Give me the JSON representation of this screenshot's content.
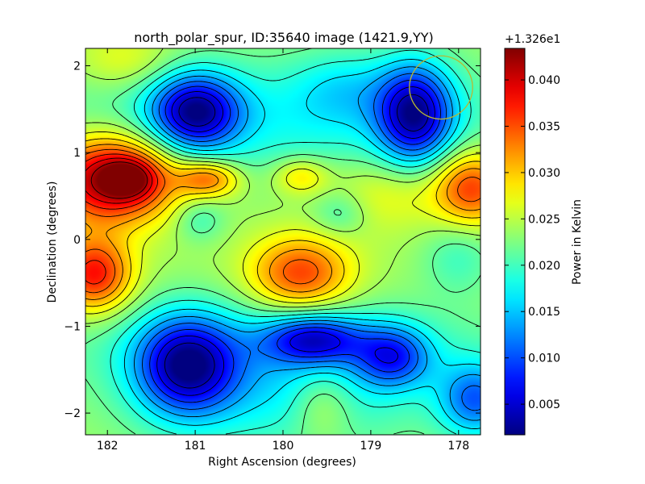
{
  "chart_data": {
    "type": "heatmap",
    "title": "north_polar_spur, ID:35640 image (1421.9,YY)",
    "xlabel": "Right Ascension (degrees)",
    "ylabel": "Declination (degrees)",
    "xlim": [
      182.25,
      177.75
    ],
    "ylim": [
      -2.25,
      2.2
    ],
    "x_ticks": [
      182,
      181,
      180,
      179,
      178
    ],
    "x_tick_labels": [
      "182",
      "181",
      "180",
      "179",
      "178"
    ],
    "y_ticks": [
      2,
      1,
      0,
      -1,
      -2
    ],
    "y_tick_labels": [
      "2",
      "1",
      "0",
      "−1",
      "−2"
    ],
    "grid": false,
    "contours": true,
    "colormap": "jet",
    "beam_circle": {
      "ra": 178.2,
      "dec": 1.75,
      "radius_deg": 0.36,
      "color": "#b8b832"
    },
    "colorbar": {
      "label": "Power in Kelvin",
      "offset_text": "+1.326e1",
      "vmin": 0.0017,
      "vmax": 0.0434,
      "ticks": [
        0.005,
        0.01,
        0.015,
        0.02,
        0.025,
        0.03,
        0.035,
        0.04
      ],
      "tick_labels": [
        "0.005",
        "0.010",
        "0.015",
        "0.020",
        "0.025",
        "0.030",
        "0.035",
        "0.040"
      ]
    },
    "field": {
      "base": 0.024,
      "features": [
        {
          "ra": 181.95,
          "dec": 0.7,
          "amp": 0.02,
          "sra": 0.5,
          "sdec": 0.35
        },
        {
          "ra": 181.75,
          "dec": 0.7,
          "amp": 0.008,
          "sra": 0.2,
          "sdec": 0.15
        },
        {
          "ra": 182.15,
          "dec": -0.4,
          "amp": 0.014,
          "sra": 0.3,
          "sdec": 0.3
        },
        {
          "ra": 180.85,
          "dec": 0.7,
          "amp": 0.01,
          "sra": 0.25,
          "sdec": 0.15
        },
        {
          "ra": 179.8,
          "dec": 0.73,
          "amp": 0.006,
          "sra": 0.22,
          "sdec": 0.15
        },
        {
          "ra": 179.8,
          "dec": -0.4,
          "amp": 0.012,
          "sra": 0.4,
          "sdec": 0.3
        },
        {
          "ra": 177.85,
          "dec": 0.6,
          "amp": 0.012,
          "sra": 0.3,
          "sdec": 0.3
        },
        {
          "ra": 178.8,
          "dec": 0.55,
          "amp": 0.004,
          "sra": 0.5,
          "sdec": 0.3
        },
        {
          "ra": 181.0,
          "dec": 1.47,
          "amp": -0.018,
          "sra": 0.35,
          "sdec": 0.3
        },
        {
          "ra": 178.5,
          "dec": 1.45,
          "amp": -0.018,
          "sra": 0.3,
          "sdec": 0.4
        },
        {
          "ra": 181.8,
          "dec": 2.05,
          "amp": 0.004,
          "sra": 0.4,
          "sdec": 0.25
        },
        {
          "ra": 179.3,
          "dec": 1.75,
          "amp": -0.004,
          "sra": 0.4,
          "sdec": 0.3
        },
        {
          "ra": 181.1,
          "dec": -1.45,
          "amp": -0.018,
          "sra": 0.4,
          "sdec": 0.4
        },
        {
          "ra": 179.65,
          "dec": -1.15,
          "amp": -0.014,
          "sra": 0.4,
          "sdec": 0.2
        },
        {
          "ra": 178.75,
          "dec": -1.35,
          "amp": -0.012,
          "sra": 0.3,
          "sdec": 0.25
        },
        {
          "ra": 177.8,
          "dec": -1.85,
          "amp": -0.012,
          "sra": 0.3,
          "sdec": 0.3
        },
        {
          "ra": 179.55,
          "dec": -1.9,
          "amp": 0.005,
          "sra": 0.25,
          "sdec": 0.3
        },
        {
          "ra": 180.0,
          "dec": -1.8,
          "amp": -0.006,
          "sra": 1.2,
          "sdec": 0.5
        },
        {
          "ra": 180.0,
          "dec": -1.2,
          "amp": -0.004,
          "sra": 2.0,
          "sdec": 0.4
        },
        {
          "ra": 180.0,
          "dec": 1.4,
          "amp": -0.006,
          "sra": 2.0,
          "sdec": 0.5
        },
        {
          "ra": 180.95,
          "dec": 0.22,
          "amp": -0.004,
          "sra": 0.2,
          "sdec": 0.18
        },
        {
          "ra": 179.35,
          "dec": 0.3,
          "amp": -0.004,
          "sra": 0.22,
          "sdec": 0.18
        },
        {
          "ra": 178.0,
          "dec": -0.2,
          "amp": -0.004,
          "sra": 0.3,
          "sdec": 0.3
        }
      ]
    }
  }
}
